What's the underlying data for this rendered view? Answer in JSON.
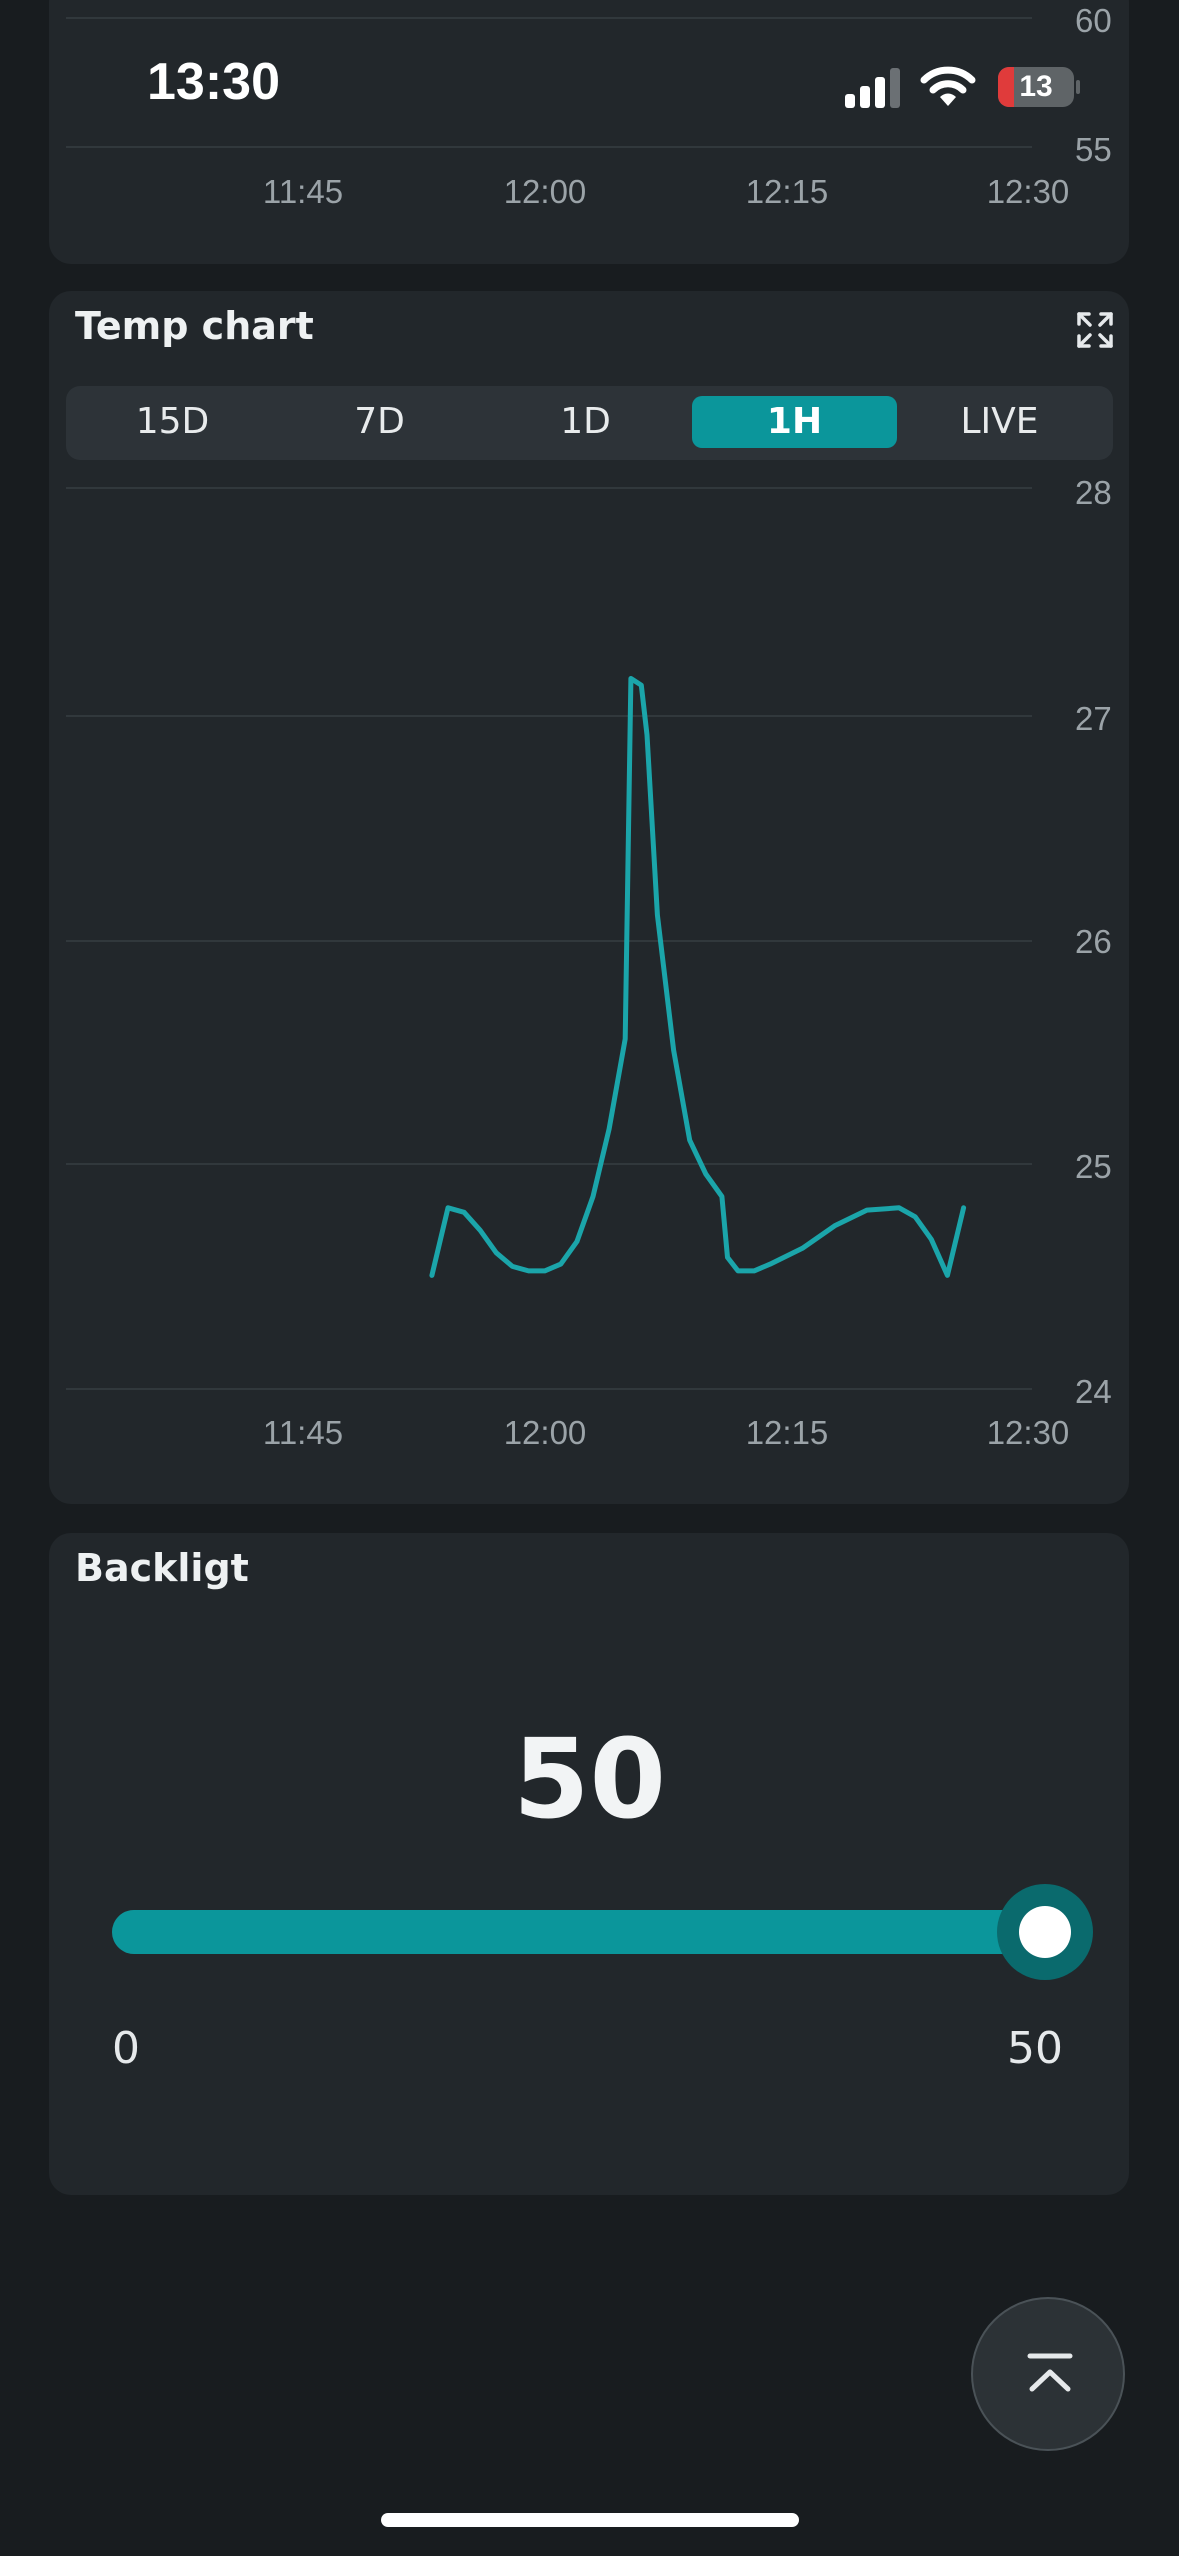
{
  "status_bar": {
    "time": "13:30",
    "battery": "13"
  },
  "top_chart": {
    "y_ticks": [
      "60",
      "55"
    ],
    "x_ticks": [
      "11:45",
      "12:00",
      "12:15",
      "12:30"
    ]
  },
  "temp_chart": {
    "title": "Temp chart",
    "expand_icon": "expand-icon",
    "ranges": [
      "15D",
      "7D",
      "1D",
      "1H",
      "LIVE"
    ],
    "active_range": "1H"
  },
  "chart_data": {
    "type": "line",
    "title": "Temp chart",
    "xlabel": "",
    "ylabel": "",
    "x_ticks": [
      "11:45",
      "12:00",
      "12:15",
      "12:30"
    ],
    "y_ticks": [
      "28",
      "27",
      "26",
      "25",
      "24"
    ],
    "ylim": [
      24,
      28
    ],
    "xlim": [
      "11:30",
      "12:30"
    ],
    "grid": true,
    "series": [
      {
        "color": "#1ba5aa",
        "points": [
          [
            "11:53",
            24.5
          ],
          [
            "11:54",
            24.8
          ],
          [
            "11:55",
            24.78
          ],
          [
            "11:56",
            24.7
          ],
          [
            "11:57",
            24.6
          ],
          [
            "11:58",
            24.54
          ],
          [
            "11:59",
            24.52
          ],
          [
            "12:00",
            24.52
          ],
          [
            "12:01",
            24.55
          ],
          [
            "12:02",
            24.65
          ],
          [
            "12:03",
            24.85
          ],
          [
            "12:04",
            25.15
          ],
          [
            "12:05",
            25.55
          ],
          [
            "12:05",
            27.15
          ],
          [
            "12:06",
            27.12
          ],
          [
            "12:06",
            26.9
          ],
          [
            "12:07",
            26.1
          ],
          [
            "12:08",
            25.5
          ],
          [
            "12:09",
            25.1
          ],
          [
            "12:10",
            24.95
          ],
          [
            "12:11",
            24.85
          ],
          [
            "12:11",
            24.58
          ],
          [
            "12:12",
            24.52
          ],
          [
            "12:13",
            24.52
          ],
          [
            "12:14",
            24.55
          ],
          [
            "12:16",
            24.62
          ],
          [
            "12:18",
            24.72
          ],
          [
            "12:20",
            24.79
          ],
          [
            "12:22",
            24.8
          ],
          [
            "12:23",
            24.76
          ],
          [
            "12:24",
            24.66
          ],
          [
            "12:25",
            24.5
          ],
          [
            "12:26",
            24.8
          ]
        ]
      }
    ]
  },
  "backlight": {
    "title": "Backligt",
    "value": "50",
    "level": 1.0,
    "min_label": "0",
    "max_label": "50"
  },
  "scroll_top_icon": "chevron-up-bar-icon"
}
